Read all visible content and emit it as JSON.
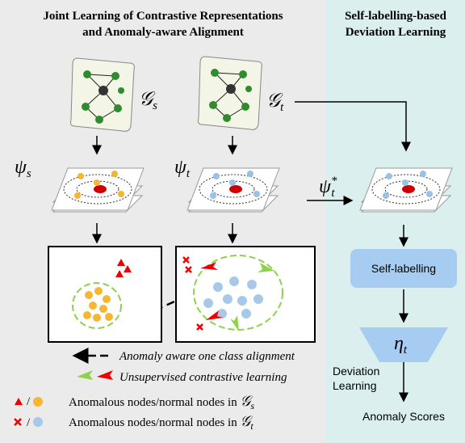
{
  "left_panel": {
    "title_lines": [
      "Joint Learning of Contrastive Representations",
      "and Anomaly-aware Alignment"
    ]
  },
  "right_panel": {
    "title_lines": [
      "Self-labelling-based",
      "Deviation Learning"
    ]
  },
  "symbols": {
    "source_graph": {
      "base": "𝒢",
      "sub": "s"
    },
    "target_graph": {
      "base": "𝒢",
      "sub": "t"
    },
    "source_encoder": {
      "base": "ψ",
      "sub": "s"
    },
    "target_encoder": {
      "base": "ψ",
      "sub": "t"
    },
    "tuned_encoder": {
      "base": "ψ",
      "sub": "t",
      "sup": "*"
    },
    "scorer": {
      "base": "η",
      "sub": "t"
    }
  },
  "steps": {
    "self_labelling": "Self-labelling",
    "deviation_lines": [
      "Deviation",
      "Learning"
    ],
    "output": "Anomaly Scores"
  },
  "legend": [
    {
      "text": "Anomaly aware one class alignment"
    },
    {
      "text": "Unsupervised contrastive learning"
    },
    {
      "text": "Anomalous nodes/normal nodes in",
      "symbol": {
        "base": "𝒢",
        "sub": "s"
      }
    },
    {
      "text": "Anomalous nodes/normal nodes in",
      "symbol": {
        "base": "𝒢",
        "sub": "t"
      }
    }
  ]
}
